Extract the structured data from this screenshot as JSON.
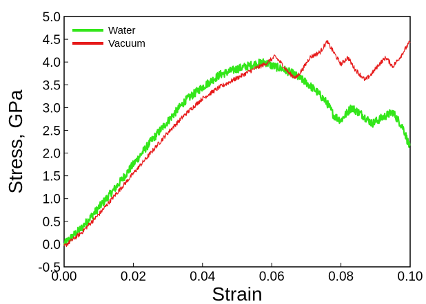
{
  "chart_data": {
    "type": "line",
    "title": "",
    "xlabel": "Strain",
    "ylabel": "Stress, GPa",
    "xlim": [
      0.0,
      0.1
    ],
    "ylim": [
      -0.5,
      5.0
    ],
    "xticks": [
      "0.00",
      "0.02",
      "0.04",
      "0.06",
      "0.08",
      "0.10"
    ],
    "yticks": [
      "-0.5",
      "0.0",
      "0.5",
      "1.0",
      "1.5",
      "2.0",
      "2.5",
      "3.0",
      "3.5",
      "4.0",
      "4.5",
      "5.0"
    ],
    "grid": false,
    "legend": "top-left",
    "series": [
      {
        "name": "Water",
        "color": "#33e61a",
        "x": [
          0.0,
          0.005,
          0.01,
          0.015,
          0.02,
          0.025,
          0.03,
          0.035,
          0.04,
          0.045,
          0.05,
          0.055,
          0.058,
          0.06,
          0.063,
          0.066,
          0.07,
          0.073,
          0.076,
          0.078,
          0.08,
          0.083,
          0.086,
          0.089,
          0.092,
          0.095,
          0.098,
          0.1
        ],
        "y": [
          0.0,
          0.35,
          0.8,
          1.25,
          1.75,
          2.25,
          2.7,
          3.15,
          3.45,
          3.72,
          3.85,
          3.95,
          4.0,
          3.92,
          3.85,
          3.75,
          3.55,
          3.35,
          3.1,
          2.82,
          2.72,
          3.0,
          2.85,
          2.65,
          2.78,
          2.9,
          2.55,
          2.1
        ]
      },
      {
        "name": "Vacuum",
        "color": "#e61a1a",
        "x": [
          0.0,
          0.005,
          0.01,
          0.015,
          0.02,
          0.025,
          0.03,
          0.035,
          0.04,
          0.045,
          0.05,
          0.055,
          0.058,
          0.061,
          0.063,
          0.065,
          0.067,
          0.069,
          0.071,
          0.074,
          0.076,
          0.078,
          0.08,
          0.082,
          0.084,
          0.087,
          0.089,
          0.091,
          0.093,
          0.095,
          0.097,
          0.1
        ],
        "y": [
          -0.05,
          0.25,
          0.65,
          1.1,
          1.55,
          2.0,
          2.45,
          2.85,
          3.2,
          3.45,
          3.65,
          3.85,
          3.95,
          4.12,
          3.95,
          3.75,
          3.65,
          3.85,
          4.1,
          4.22,
          4.45,
          4.2,
          3.95,
          4.1,
          3.85,
          3.6,
          3.75,
          3.95,
          4.1,
          3.9,
          4.1,
          4.45
        ]
      }
    ]
  }
}
